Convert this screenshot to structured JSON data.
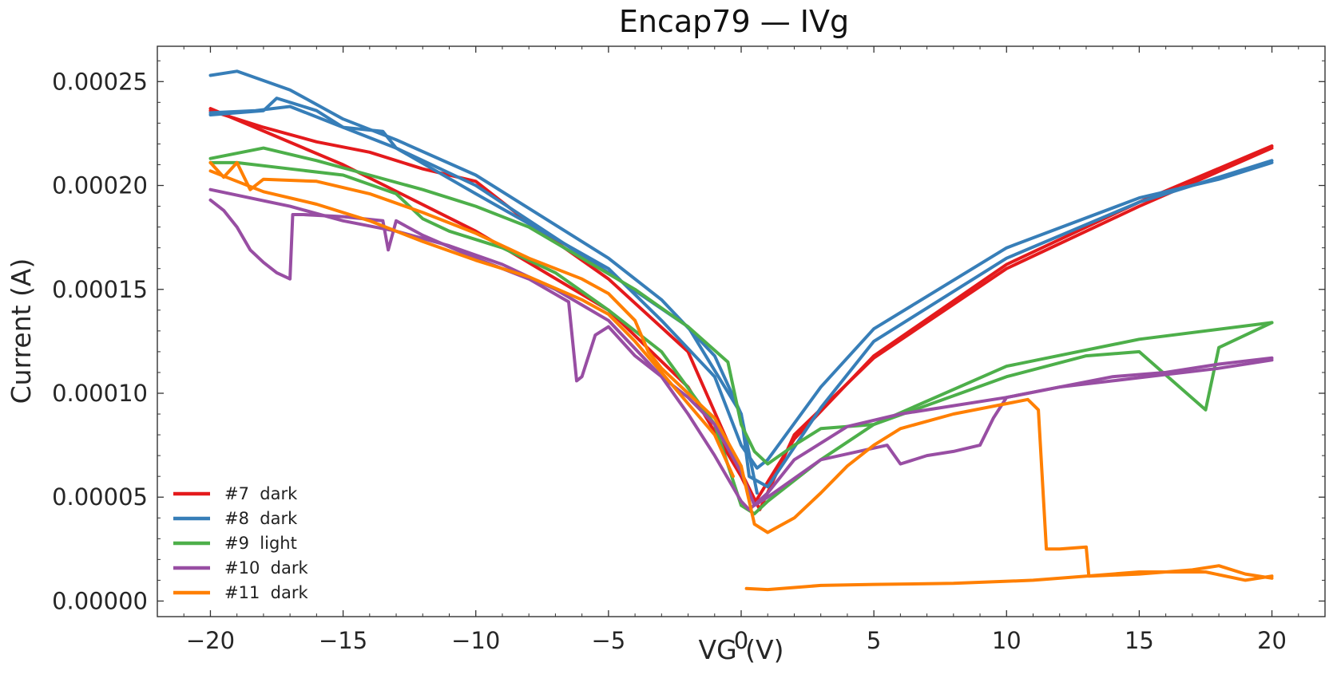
{
  "chart_data": {
    "type": "line",
    "title": "Encap79 — IVg",
    "xlabel": "VG (V)",
    "ylabel": "Current (A)",
    "xlim": [
      -22,
      22
    ],
    "ylim": [
      -7.5e-06,
      0.000267
    ],
    "xticks": [
      -20,
      -15,
      -10,
      -5,
      0,
      5,
      10,
      15,
      20
    ],
    "xtick_labels": [
      "−20",
      "−15",
      "−10",
      "−5",
      "0",
      "5",
      "10",
      "15",
      "20"
    ],
    "yticks": [
      0,
      5e-05,
      0.0001,
      0.00015,
      0.0002,
      0.00025
    ],
    "ytick_labels": [
      "0.00000",
      "0.00005",
      "0.00010",
      "0.00015",
      "0.00020",
      "0.00025"
    ],
    "legend_position": "bottom-left",
    "series": [
      {
        "name": "#7  dark",
        "color": "#e41a1c",
        "segments": [
          {
            "x": [
              -20,
              -15,
              -10,
              -5,
              -2,
              0,
              0.5,
              2,
              5,
              10,
              15,
              20
            ],
            "y": [
              0.000237,
              0.00021,
              0.000178,
              0.00014,
              0.000103,
              6e-05,
              4.7e-05,
              7.8e-05,
              0.000118,
              0.000162,
              0.000192,
              0.000219
            ]
          },
          {
            "x": [
              20,
              15,
              10,
              5,
              2,
              0.7,
              0,
              -2,
              -5,
              -8,
              -10,
              -12,
              -14,
              -16,
              -18,
              -20
            ],
            "y": [
              0.000218,
              0.00019,
              0.00016,
              0.000117,
              8e-05,
              4.4e-05,
              6.2e-05,
              0.00012,
              0.000155,
              0.000182,
              0.000202,
              0.000208,
              0.000216,
              0.000221,
              0.000228,
              0.000236
            ]
          }
        ]
      },
      {
        "name": "#8  dark",
        "color": "#377eb8",
        "segments": [
          {
            "x": [
              -20,
              -19,
              -17,
              -15,
              -13,
              -10,
              -5,
              -3,
              -1,
              0,
              0.3,
              1,
              3,
              5,
              10,
              15,
              20
            ],
            "y": [
              0.000253,
              0.000255,
              0.000246,
              0.000232,
              0.000222,
              0.000205,
              0.000165,
              0.000145,
              0.000118,
              9e-05,
              6e-05,
              5.5e-05,
              9.3e-05,
              0.000125,
              0.000165,
              0.000192,
              0.000212
            ]
          },
          {
            "x": [
              20,
              18,
              16,
              15,
              10,
              5,
              3,
              1,
              0.6,
              0,
              -1,
              -3,
              -5,
              -10,
              -13,
              -15,
              -17,
              -18.3,
              -20
            ],
            "y": [
              0.000211,
              0.000203,
              0.000197,
              0.000194,
              0.00017,
              0.000131,
              0.000103,
              6.8e-05,
              6.4e-05,
              7.5e-05,
              0.000108,
              0.000135,
              0.00016,
              0.000196,
              0.000218,
              0.000228,
              0.000238,
              0.000236,
              0.000235
            ]
          },
          {
            "x": [
              -20,
              -18,
              -17.5,
              -16,
              -15,
              -13.5,
              -13,
              -10,
              -5,
              -2,
              0,
              0.6
            ],
            "y": [
              0.000234,
              0.000236,
              0.000242,
              0.000236,
              0.000228,
              0.000226,
              0.000218,
              0.0002,
              0.000158,
              0.000132,
              9e-05,
              5.2e-05
            ]
          }
        ]
      },
      {
        "name": "#9  light",
        "color": "#4daf4a",
        "segments": [
          {
            "x": [
              -20,
              -18,
              -16,
              -14,
              -12,
              -10,
              -8,
              -6,
              -4,
              -2,
              -0.5,
              0,
              0.5,
              1,
              2,
              3,
              5,
              10,
              13,
              15,
              17.5,
              18,
              20
            ],
            "y": [
              0.000213,
              0.000218,
              0.000212,
              0.000205,
              0.000198,
              0.00019,
              0.00018,
              0.000165,
              0.00015,
              0.000132,
              0.000115,
              8.5e-05,
              7.2e-05,
              6.6e-05,
              7.5e-05,
              8.3e-05,
              8.5e-05,
              0.000108,
              0.000118,
              0.00012,
              9.2e-05,
              0.000122,
              0.000134
            ]
          },
          {
            "x": [
              20,
              15,
              10,
              5,
              3,
              1,
              0.5,
              0,
              -1,
              -3,
              -5,
              -7,
              -9,
              -11,
              -12,
              -13,
              -15,
              -17,
              -19,
              -20
            ],
            "y": [
              0.000134,
              0.000126,
              0.000113,
              8.5e-05,
              6.8e-05,
              4.8e-05,
              4.2e-05,
              4.6e-05,
              8.5e-05,
              0.00012,
              0.00014,
              0.000158,
              0.00017,
              0.000178,
              0.000184,
              0.000196,
              0.000205,
              0.000208,
              0.000211,
              0.000211
            ]
          }
        ]
      },
      {
        "name": "#10  dark",
        "color": "#984ea3",
        "segments": [
          {
            "x": [
              -20,
              -19.5,
              -19,
              -18.5,
              -18,
              -17.5,
              -17,
              -16.9,
              -16.5,
              -15,
              -13.5,
              -13.3,
              -13,
              -12,
              -10,
              -8,
              -6.5,
              -6.2,
              -6,
              -5.5,
              -5,
              -4,
              -2,
              -1,
              0,
              0.5,
              1,
              3,
              5.5,
              6,
              7,
              8,
              9,
              9.5,
              10,
              12,
              14,
              16,
              18,
              20
            ],
            "y": [
              0.000193,
              0.000188,
              0.00018,
              0.000169,
              0.000163,
              0.000158,
              0.000155,
              0.000186,
              0.000186,
              0.000185,
              0.000183,
              0.000169,
              0.000183,
              0.000176,
              0.000165,
              0.000155,
              0.000144,
              0.000106,
              0.000108,
              0.000128,
              0.000132,
              0.000118,
              9.8e-05,
              8.5e-05,
              6.2e-05,
              4.6e-05,
              5e-05,
              6.8e-05,
              7.5e-05,
              6.6e-05,
              7e-05,
              7.2e-05,
              7.5e-05,
              8.8e-05,
              9.8e-05,
              0.000103,
              0.000106,
              0.000109,
              0.000112,
              0.000116
            ]
          },
          {
            "x": [
              20,
              18,
              16,
              14,
              12,
              10,
              8,
              6,
              4,
              2,
              1,
              0.3,
              0,
              -1,
              -2,
              -3,
              -5,
              -7,
              -9,
              -11,
              -13,
              -15,
              -17,
              -20
            ],
            "y": [
              0.000117,
              0.000114,
              0.00011,
              0.000108,
              0.000103,
              9.8e-05,
              9.4e-05,
              9e-05,
              8.4e-05,
              6.8e-05,
              5.2e-05,
              4.4e-05,
              4.8e-05,
              7e-05,
              9e-05,
              0.000108,
              0.000135,
              0.00015,
              0.000162,
              0.000171,
              0.000178,
              0.000183,
              0.00019,
              0.000198
            ]
          }
        ]
      },
      {
        "name": "#11  dark",
        "color": "#ff7f00",
        "segments": [
          {
            "x": [
              -20,
              -19.5,
              -19,
              -18.5,
              -18,
              -16,
              -14,
              -12,
              -10,
              -8,
              -6,
              -5,
              -4,
              -3.5,
              -3,
              -2,
              -1,
              0,
              0.5,
              1,
              2,
              3,
              4,
              5,
              6,
              8,
              10,
              10.8,
              11.2,
              11.5,
              12,
              13,
              13.1,
              15,
              17,
              18,
              19,
              20
            ],
            "y": [
              0.000211,
              0.000204,
              0.000211,
              0.000198,
              0.000203,
              0.000202,
              0.000196,
              0.000187,
              0.000177,
              0.000165,
              0.000155,
              0.000148,
              0.000135,
              0.00012,
              0.000112,
              0.0001,
              8.8e-05,
              6.5e-05,
              3.7e-05,
              3.3e-05,
              4e-05,
              5.2e-05,
              6.5e-05,
              7.5e-05,
              8.3e-05,
              9e-05,
              9.5e-05,
              9.7e-05,
              9.2e-05,
              2.5e-05,
              2.5e-05,
              2.6e-05,
              1.2e-05,
              1.3e-05,
              1.5e-05,
              1.7e-05,
              1.3e-05,
              1.1e-05
            ]
          },
          {
            "x": [
              0.2,
              1,
              3,
              5,
              8,
              11,
              13,
              15,
              17.5,
              19,
              20
            ],
            "y": [
              6e-06,
              5.5e-06,
              7.5e-06,
              8e-06,
              8.5e-06,
              1e-05,
              1.2e-05,
              1.4e-05,
              1.4e-05,
              1e-05,
              1.2e-05
            ]
          },
          {
            "x": [
              -20,
              -18,
              -16,
              -14,
              -12,
              -10,
              -8,
              -6,
              -5,
              -4,
              -3,
              -2,
              -1,
              -0.3
            ],
            "y": [
              0.000207,
              0.000197,
              0.000191,
              0.000183,
              0.000173,
              0.000164,
              0.000156,
              0.000145,
              0.000138,
              0.000125,
              0.00011,
              9.5e-05,
              8e-05,
              6e-05
            ]
          }
        ]
      }
    ]
  }
}
